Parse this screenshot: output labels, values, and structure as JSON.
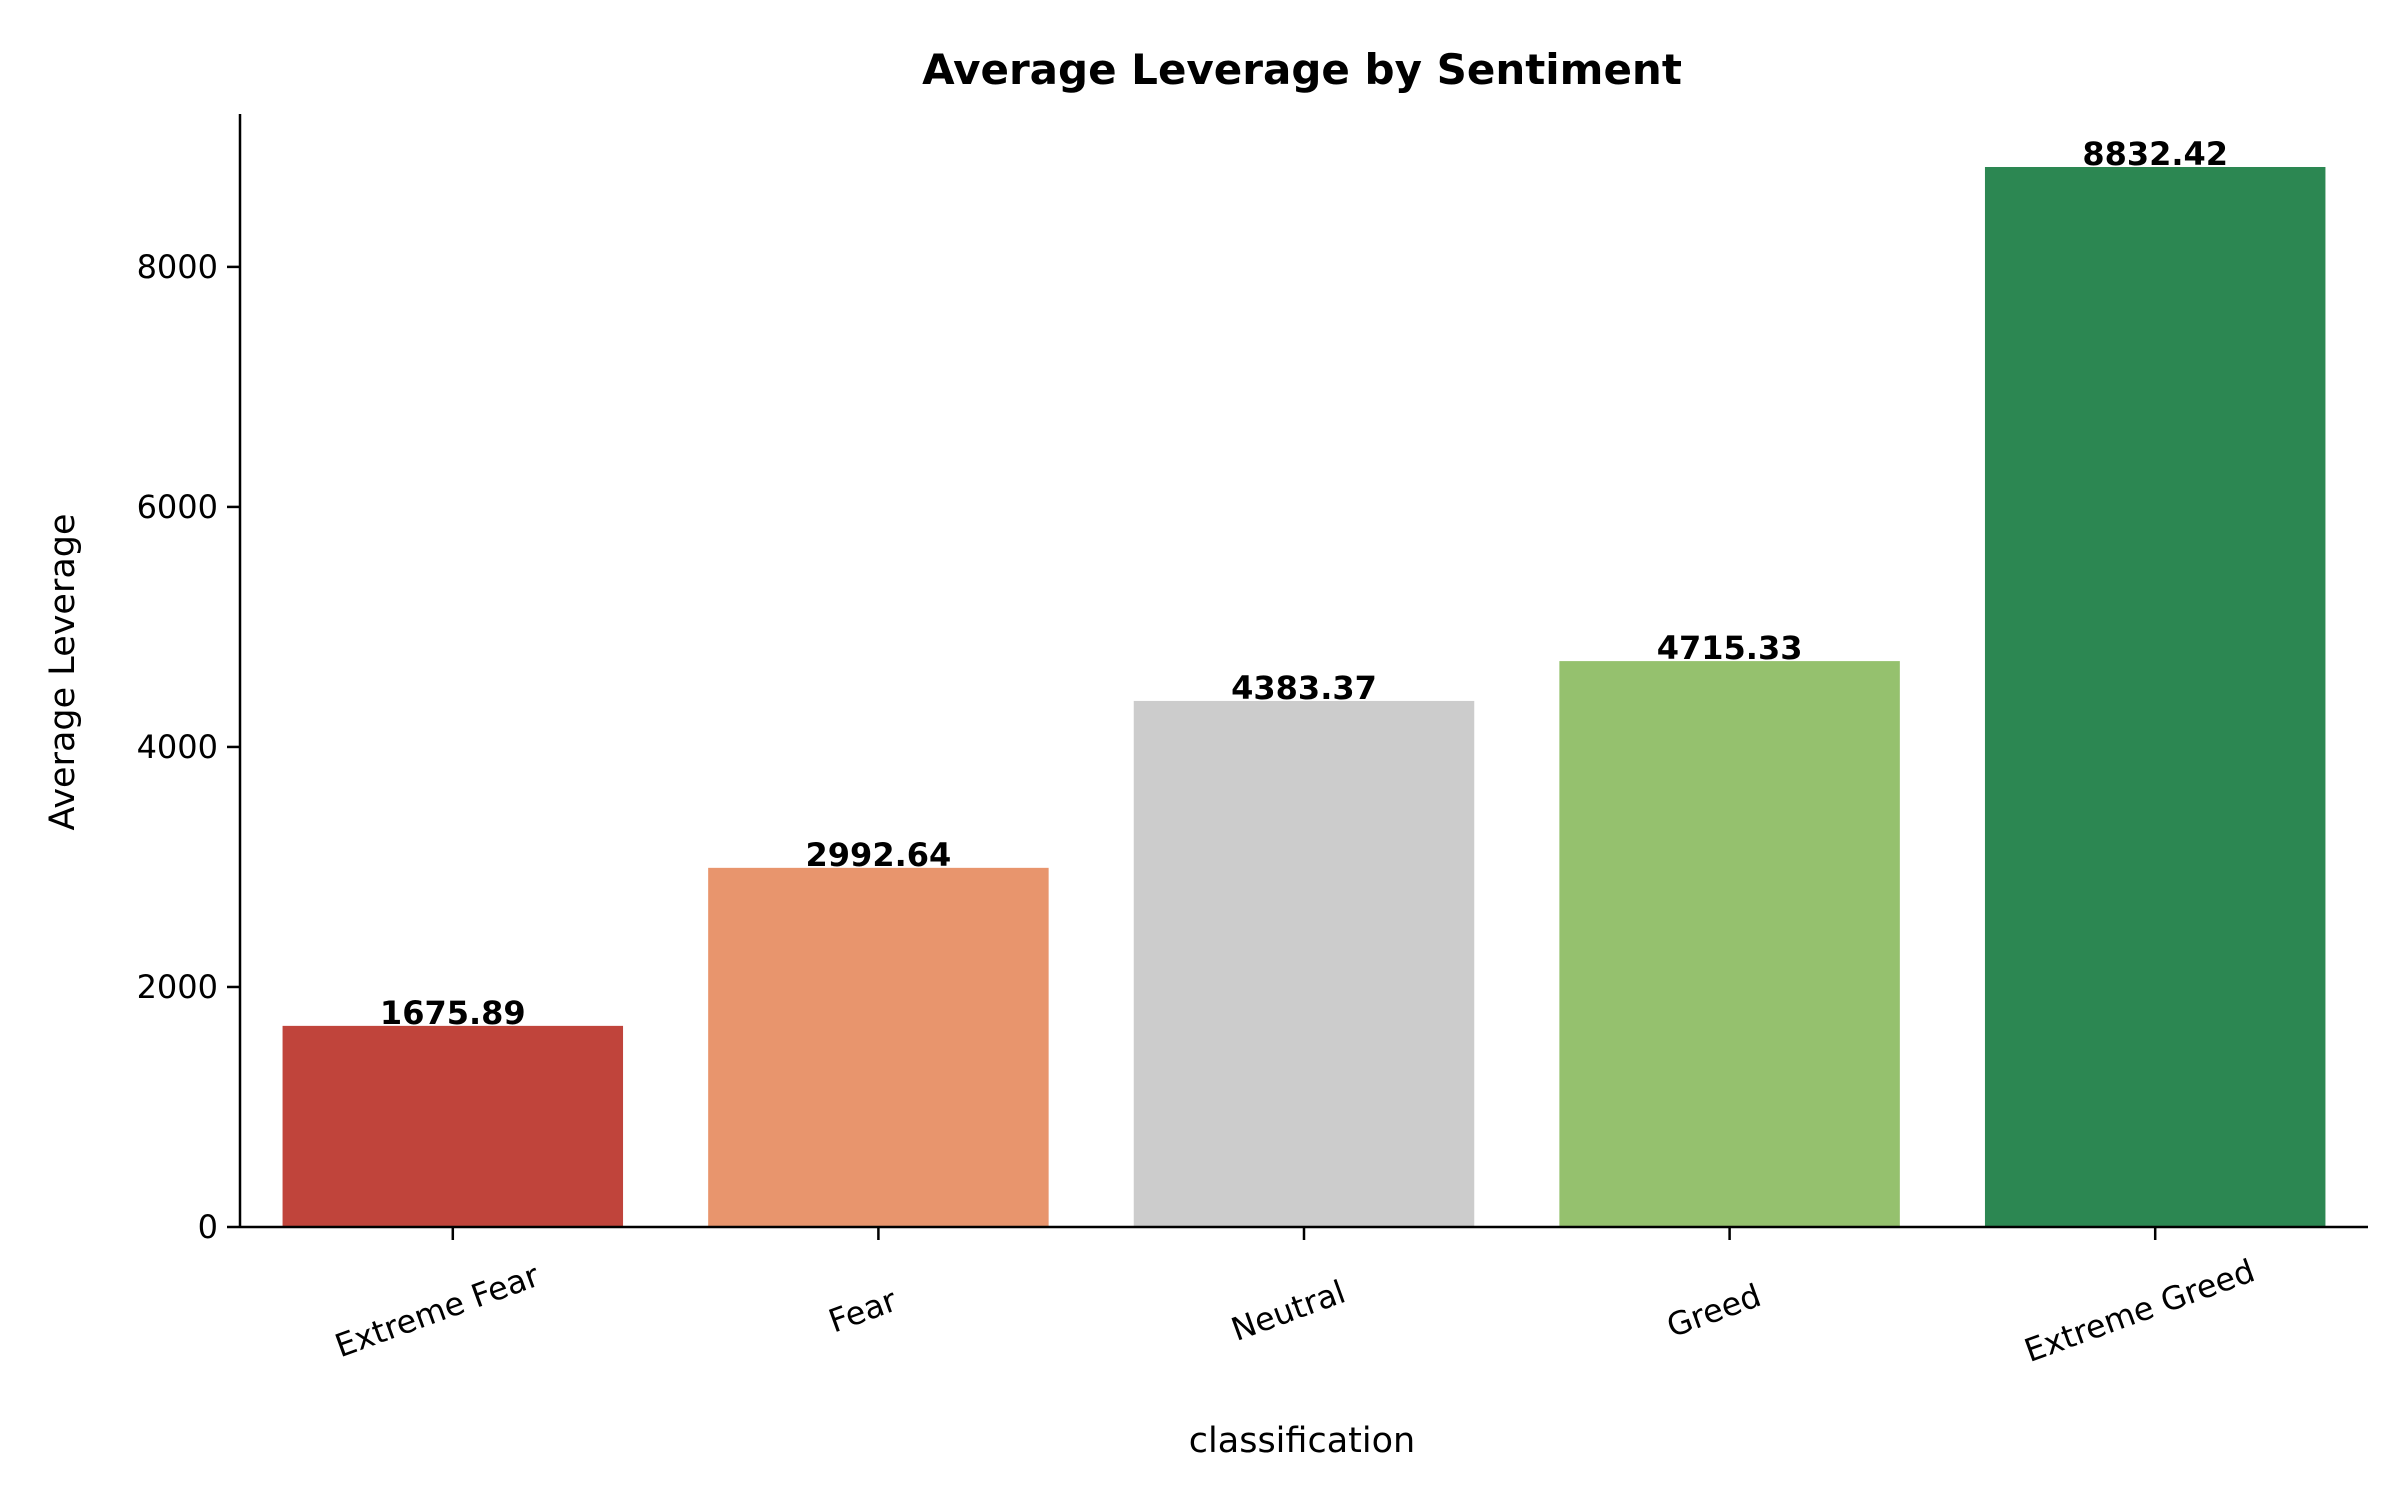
{
  "chart_data": {
    "type": "bar",
    "title": "Average Leverage by Sentiment",
    "xlabel": "classification",
    "ylabel": "Average Leverage",
    "categories": [
      "Extreme Fear",
      "Fear",
      "Neutral",
      "Greed",
      "Extreme Greed"
    ],
    "values": [
      1675.89,
      2992.64,
      4383.37,
      4715.33,
      8832.42
    ],
    "value_labels": [
      "1675.89",
      "2992.64",
      "4383.37",
      "4715.33",
      "8832.42"
    ],
    "bar_colors": [
      "#c0443b",
      "#e8956d",
      "#cccccc",
      "#95c16e",
      "#2c8752"
    ],
    "ylim": [
      0,
      9274
    ],
    "yticks": [
      0,
      2000,
      4000,
      6000,
      8000
    ],
    "ytick_labels": [
      "0",
      "2000",
      "4000",
      "6000",
      "8000"
    ],
    "grid": false,
    "legend": "none"
  }
}
